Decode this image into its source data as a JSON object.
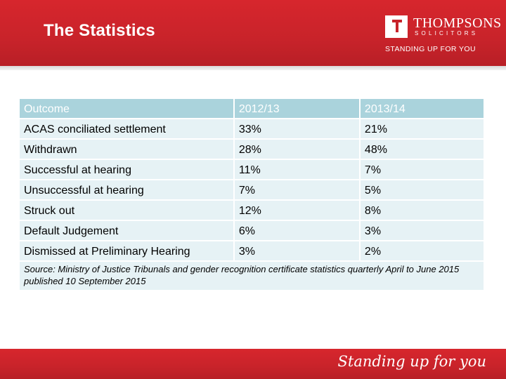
{
  "slide": {
    "title": "The Statistics"
  },
  "logo": {
    "name": "THOMPSONS",
    "subtitle": "SOLICITORS",
    "strapline": "STANDING UP FOR YOU"
  },
  "table": {
    "headers": [
      "Outcome",
      "2012/13",
      "2013/14"
    ],
    "rows": [
      [
        "ACAS conciliated settlement",
        "33%",
        "21%"
      ],
      [
        "Withdrawn",
        "28%",
        "48%"
      ],
      [
        "Successful at hearing",
        "11%",
        "7%"
      ],
      [
        "Unsuccessful at hearing",
        "7%",
        "5%"
      ],
      [
        "Struck out",
        "12%",
        "8%"
      ],
      [
        "Default Judgement",
        "6%",
        "3%"
      ],
      [
        "Dismissed at Preliminary Hearing",
        "3%",
        "2%"
      ]
    ],
    "source": "Source: Ministry of Justice Tribunals and gender recognition certificate statistics quarterly April to June 2015 published 10 September 2015"
  },
  "footer": {
    "tagline": "Standing up for you"
  },
  "colors": {
    "brand_red": "#c8232a",
    "header_cell": "#aad3dc",
    "body_cell": "#e6f2f5"
  }
}
